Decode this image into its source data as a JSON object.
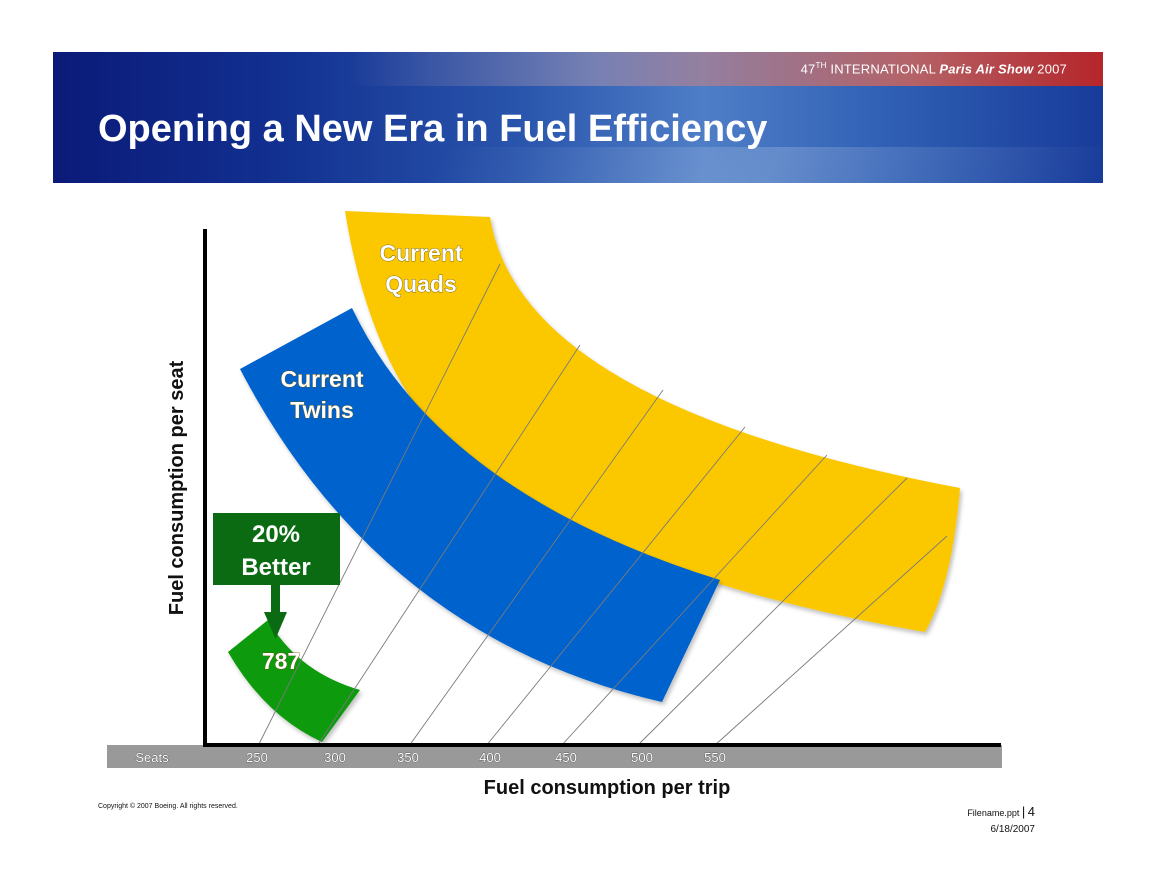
{
  "header": {
    "show_prefix": "47",
    "show_suffix": "TH",
    "show_middle": " INTERNATIONAL ",
    "show_bold": "Paris Air Show",
    "show_year": " 2007",
    "title": "Opening a New Era in Fuel Efficiency"
  },
  "diagram": {
    "y_axis_label": "Fuel consumption per seat",
    "x_axis_label": "Fuel consumption per trip",
    "seats_label": "Seats",
    "seat_ticks": [
      "250",
      "300",
      "350",
      "400",
      "450",
      "500",
      "550"
    ],
    "quads_label_line1": "Current",
    "quads_label_line2": "Quads",
    "twins_label_line1": "Current",
    "twins_label_line2": "Twins",
    "better_line1": "20%",
    "better_line2": "Better",
    "dreamliner_label": "787",
    "colors": {
      "quads": "#fbc800",
      "twins": "#0062cc",
      "dreamliner": "#0a9a0a",
      "better_box": "#0b6b12",
      "seats_bar": "#999999"
    }
  },
  "footer": {
    "copyright": "Copyright © 2007 Boeing. All rights reserved.",
    "filename": "Filename.ppt",
    "page": "4",
    "date": "6/18/2007"
  }
}
